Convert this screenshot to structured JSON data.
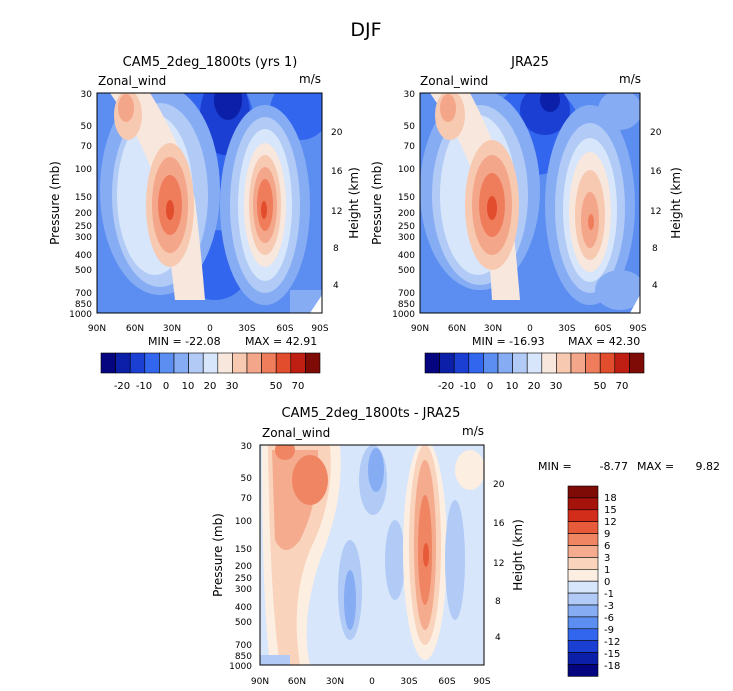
{
  "figure_title": "DJF",
  "colors": {
    "model": [
      "#05067f",
      "#0b1fa9",
      "#1c3fd3",
      "#3366ee",
      "#5c8ef2",
      "#86acf3",
      "#b1cbf6",
      "#d7e6fa",
      "#f8e7dd",
      "#f7c9b1",
      "#f4a68a",
      "#ef7d5c",
      "#e24d2d",
      "#bf1f13",
      "#7e0b06"
    ],
    "diff": [
      "#05067f",
      "#0b1fa9",
      "#1c3fd3",
      "#3366ee",
      "#5c8ef2",
      "#86acf3",
      "#b1cbf6",
      "#d7e6fa",
      "#fdeee2",
      "#f9d3bb",
      "#f4ab8e",
      "#ef8562",
      "#e75a3a",
      "#d22d1a",
      "#a5130a",
      "#7e0b06"
    ]
  },
  "chart_data": [
    {
      "type": "heatmap",
      "title": "CAM5_2deg_1800ts (yrs 1)",
      "variable_label": "Zonal_wind",
      "units": "m/s",
      "ylabel": "Pressure (mb)",
      "ylabel_right": "Height (km)",
      "x_ticks": [
        "90N",
        "60N",
        "30N",
        "0",
        "30S",
        "60S",
        "90S"
      ],
      "y_ticks": [
        "30",
        "50",
        "70",
        "100",
        "150",
        "200",
        "250",
        "300",
        "400",
        "500",
        "700",
        "850",
        "1000"
      ],
      "y_ticks_right": [
        "4",
        "8",
        "12",
        "16",
        "20"
      ],
      "min_label": "MIN = -22.08",
      "max_label": "MAX = 42.91",
      "colorbar_labels": [
        "-20",
        "-10",
        "0",
        "10",
        "20",
        "30",
        "50",
        "70"
      ],
      "colorbar_levels": [
        -20,
        -15,
        -10,
        -5,
        0,
        5,
        10,
        15,
        20,
        25,
        30,
        40,
        50,
        60,
        70
      ],
      "extrema": {
        "min": -22.08,
        "max": 42.91
      },
      "features": [
        {
          "lat": -35,
          "p": 200,
          "value": 42.9
        },
        {
          "lat": 30,
          "p": 200,
          "value": 40.0
        },
        {
          "lat": -15,
          "p": 30,
          "value": -22.0
        }
      ]
    },
    {
      "type": "heatmap",
      "title": "JRA25",
      "variable_label": "Zonal_wind",
      "units": "m/s",
      "ylabel": "Pressure (mb)",
      "ylabel_right": "Height (km)",
      "x_ticks": [
        "90N",
        "60N",
        "30N",
        "0",
        "30S",
        "60S",
        "90S"
      ],
      "y_ticks": [
        "30",
        "50",
        "70",
        "100",
        "150",
        "200",
        "250",
        "300",
        "400",
        "500",
        "700",
        "850",
        "1000"
      ],
      "y_ticks_right": [
        "4",
        "8",
        "12",
        "16",
        "20"
      ],
      "min_label": "MIN = -16.93",
      "max_label": "MAX = 42.30",
      "colorbar_labels": [
        "-20",
        "-10",
        "0",
        "10",
        "20",
        "30",
        "50",
        "70"
      ],
      "colorbar_levels": [
        -20,
        -15,
        -10,
        -5,
        0,
        5,
        10,
        15,
        20,
        25,
        30,
        40,
        50,
        60,
        70
      ],
      "extrema": {
        "min": -16.93,
        "max": 42.3
      },
      "features": [
        {
          "lat": 30,
          "p": 200,
          "value": 42.3
        },
        {
          "lat": -45,
          "p": 250,
          "value": 35.0
        },
        {
          "lat": -15,
          "p": 30,
          "value": -16.9
        }
      ]
    },
    {
      "type": "heatmap",
      "title": "CAM5_2deg_1800ts - JRA25",
      "variable_label": "Zonal_wind",
      "units": "m/s",
      "ylabel": "Pressure (mb)",
      "ylabel_right": "Height (km)",
      "x_ticks": [
        "90N",
        "60N",
        "30N",
        "0",
        "30S",
        "60S",
        "90S"
      ],
      "y_ticks": [
        "30",
        "50",
        "70",
        "100",
        "150",
        "200",
        "250",
        "300",
        "400",
        "500",
        "700",
        "850",
        "1000"
      ],
      "y_ticks_right": [
        "4",
        "8",
        "12",
        "16",
        "20"
      ],
      "min_label": "MIN =",
      "min_value": "-8.77",
      "max_label": "MAX =",
      "max_value": "9.82",
      "colorbar_labels": [
        "18",
        "15",
        "12",
        "9",
        "6",
        "3",
        "1",
        "0",
        "-1",
        "-3",
        "-6",
        "-9",
        "-12",
        "-15",
        "-18"
      ],
      "colorbar_levels": [
        -18,
        -15,
        -12,
        -9,
        -6,
        -3,
        -1,
        0,
        1,
        3,
        6,
        9,
        12,
        15,
        18
      ],
      "extrema": {
        "min": -8.77,
        "max": 9.82
      },
      "features": [
        {
          "lat": -40,
          "p": 150,
          "value": 9.8
        },
        {
          "lat": 5,
          "p": 100,
          "value": -8.8
        },
        {
          "lat": 70,
          "p": 70,
          "value": 7.0
        }
      ]
    }
  ]
}
